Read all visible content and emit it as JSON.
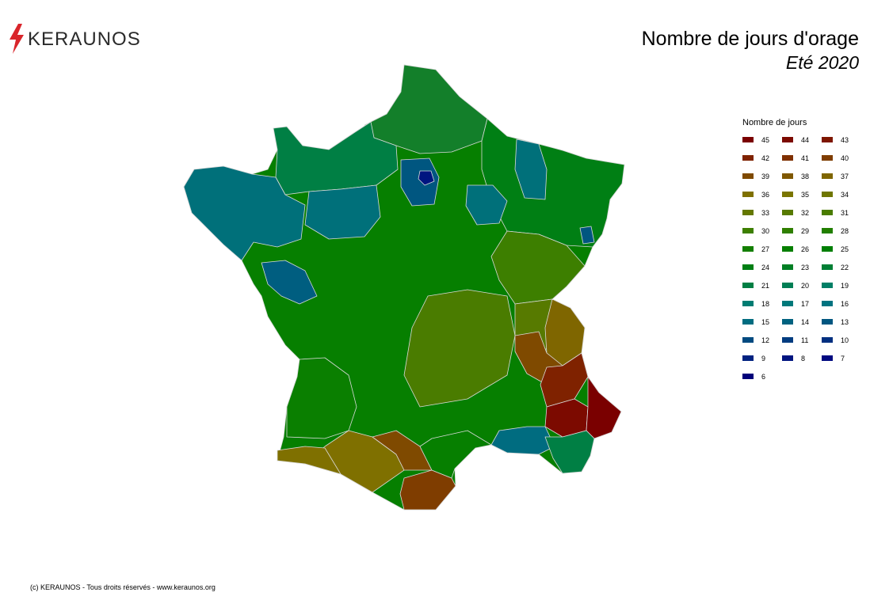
{
  "brand": {
    "name": "KERAUNOS",
    "accent_color": "#d9252b"
  },
  "title": "Nombre de jours d'orage",
  "subtitle": "Eté 2020",
  "legend": {
    "title": "Nombre de jours",
    "items": [
      {
        "label": "45",
        "color": "#7a0000"
      },
      {
        "label": "44",
        "color": "#7c0a00"
      },
      {
        "label": "43",
        "color": "#7e1600"
      },
      {
        "label": "42",
        "color": "#7f2200"
      },
      {
        "label": "41",
        "color": "#7f3000"
      },
      {
        "label": "40",
        "color": "#7f3d00"
      },
      {
        "label": "39",
        "color": "#7f4a00"
      },
      {
        "label": "38",
        "color": "#7f5800"
      },
      {
        "label": "37",
        "color": "#7f6600"
      },
      {
        "label": "36",
        "color": "#7f7000"
      },
      {
        "label": "35",
        "color": "#7a7500"
      },
      {
        "label": "34",
        "color": "#6f7600"
      },
      {
        "label": "33",
        "color": "#647800"
      },
      {
        "label": "32",
        "color": "#577a00"
      },
      {
        "label": "31",
        "color": "#4a7c00"
      },
      {
        "label": "30",
        "color": "#3d7f00"
      },
      {
        "label": "29",
        "color": "#2f7f00"
      },
      {
        "label": "28",
        "color": "#217f00"
      },
      {
        "label": "27",
        "color": "#137f00"
      },
      {
        "label": "26",
        "color": "#067f00"
      },
      {
        "label": "25",
        "color": "#007f05"
      },
      {
        "label": "24",
        "color": "#007f14"
      },
      {
        "label": "23",
        "color": "#007f24"
      },
      {
        "label": "22",
        "color": "#007f34"
      },
      {
        "label": "21",
        "color": "#007f44"
      },
      {
        "label": "20",
        "color": "#007f55"
      },
      {
        "label": "19",
        "color": "#007f66"
      },
      {
        "label": "18",
        "color": "#007c72"
      },
      {
        "label": "17",
        "color": "#00797a"
      },
      {
        "label": "16",
        "color": "#007380"
      },
      {
        "label": "15",
        "color": "#006c80"
      },
      {
        "label": "14",
        "color": "#006280"
      },
      {
        "label": "13",
        "color": "#005680"
      },
      {
        "label": "12",
        "color": "#004a80"
      },
      {
        "label": "11",
        "color": "#003c80"
      },
      {
        "label": "10",
        "color": "#002f80"
      },
      {
        "label": "9",
        "color": "#002280"
      },
      {
        "label": "8",
        "color": "#001580"
      },
      {
        "label": "7",
        "color": "#000a80"
      },
      {
        "label": "6",
        "color": "#00007a"
      }
    ]
  },
  "map_colors": {
    "border": "#d9d9d9",
    "north": "#137f2a",
    "northeast": "#007f14",
    "brittany": "#00707a",
    "normandy": "#007f44",
    "paris_ring": "#005680",
    "paris_core": "#001580",
    "center": "#067f00",
    "southwest": "#0a7f00",
    "massif": "#4a7c00",
    "alps_north": "#3d7f00",
    "rhone": "#577a00",
    "pyrenees": "#7f7000",
    "ariege": "#7f4a00",
    "pyr_orientales": "#7f3d00",
    "drome": "#7f4a00",
    "hautes_alpes": "#7f6600",
    "alpes_hp": "#7f2200",
    "var_inland": "#7c0a00",
    "alpes_maritimes": "#7a0000",
    "provence_coast": "#006c80",
    "var_coast": "#007f44",
    "vendee": "#005e80",
    "haute_corse": "#007f24",
    "corse_sud": "#004a80"
  },
  "copyright": "(c) KERAUNOS - Tous droits réservés - www.keraunos.org"
}
